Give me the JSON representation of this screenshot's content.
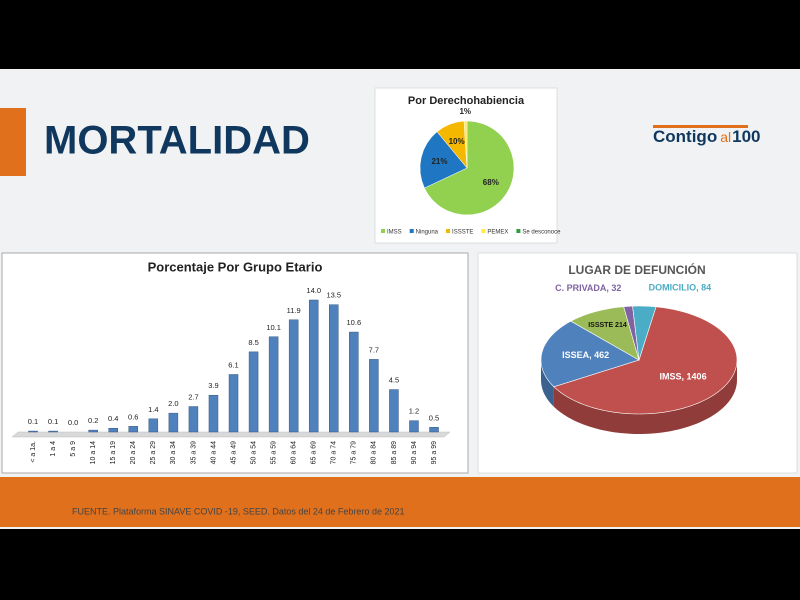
{
  "header": {
    "title": "MORTALIDAD",
    "logo": [
      "Contigo",
      "al",
      "100"
    ]
  },
  "chart_data": [
    {
      "type": "pie",
      "title": "Por Derechohabiencia",
      "categories": [
        "IMSS",
        "Ninguna",
        "ISSSTE",
        "PEMEX",
        "Se desconoce"
      ],
      "values": [
        68,
        21,
        10,
        1,
        0
      ],
      "value_labels": [
        "68%",
        "21%",
        "10%",
        "1%",
        null
      ],
      "colors": [
        "#92d050",
        "#1f77c4",
        "#f5b800",
        "#ffe94d",
        "#2e9e3e"
      ]
    },
    {
      "type": "bar",
      "title": "Porcentaje Por Grupo Etario",
      "categories": [
        "< a 1a.",
        "1 a 4",
        "5 a 9",
        "10 a 14",
        "15 a 19",
        "20 a 24",
        "25 a 29",
        "30 a 34",
        "35 a 39",
        "40 a 44",
        "45 a 49",
        "50 a 54",
        "55 a 59",
        "60 a 64",
        "65 a 69",
        "70 a 74",
        "75 a 79",
        "80 a 84",
        "85 a 89",
        "90 a 94",
        "95 a 99"
      ],
      "values": [
        0.1,
        0.1,
        0.0,
        0.2,
        0.4,
        0.6,
        1.4,
        2.0,
        2.7,
        3.9,
        6.1,
        8.5,
        10.1,
        11.9,
        14.0,
        13.5,
        10.6,
        7.7,
        4.5,
        1.2,
        0.5
      ],
      "value_labels": [
        "0.1",
        "0.1",
        "0.0",
        "0.2",
        "0.4",
        "0.6",
        "1.4",
        "2.0",
        "2.7",
        "3.9",
        "6.1",
        "8.5",
        "10.1",
        "11.9",
        "14.0",
        "13.5",
        "10.6",
        "7.7",
        "4.5",
        "1.2",
        "0.5"
      ],
      "color": "#4f81bd",
      "ylim": [
        0,
        14
      ]
    },
    {
      "type": "pie3d",
      "title": "LUGAR DE DEFUNCIÓN",
      "categories": [
        "IMSS",
        "ISSEA",
        "ISSSTE",
        "C. PRIVADA",
        "DOMICILIO"
      ],
      "values": [
        1406,
        462,
        214,
        32,
        84
      ],
      "value_labels": [
        "IMSS, 1406",
        "ISSEA, 462",
        "ISSSTE 214",
        "C. PRIVADA, 32",
        "DOMICILIO, 84"
      ],
      "colors": [
        "#c0504d",
        "#4f81bd",
        "#9bbb59",
        "#8064a2",
        "#4bacc6"
      ]
    }
  ],
  "footer": {
    "source": "FUENTE. Plataforma SINAVE COVID -19, SEED. Datos del 24 de Febrero de 2021"
  }
}
